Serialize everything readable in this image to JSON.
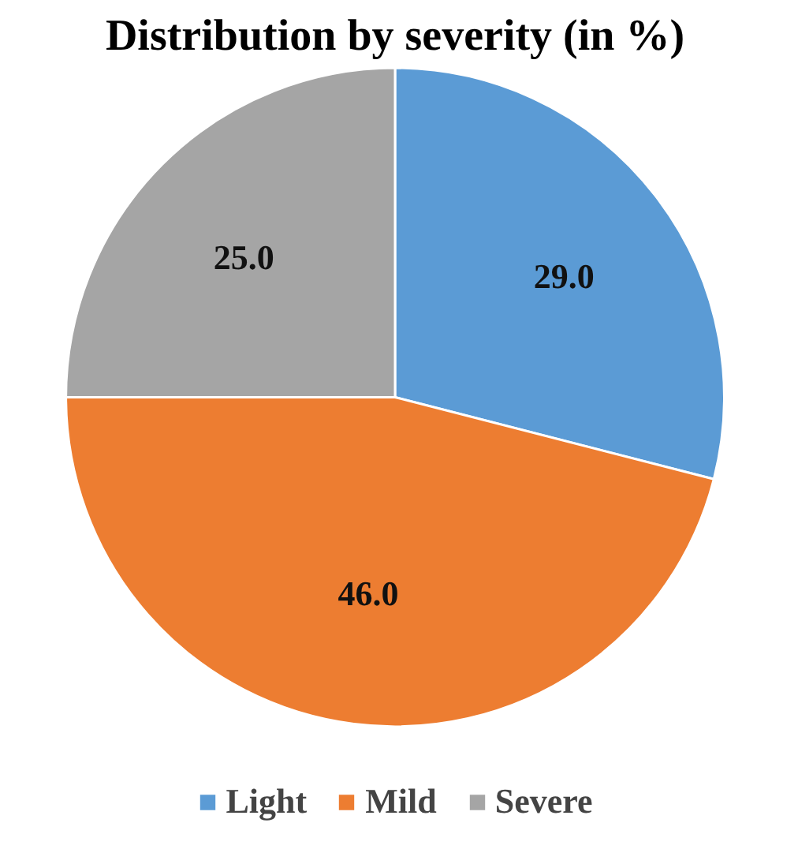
{
  "chart_data": {
    "type": "pie",
    "title": "Distribution by severity (in %)",
    "categories": [
      "Light",
      "Mild",
      "Severe"
    ],
    "values": [
      29.0,
      46.0,
      25.0
    ],
    "value_labels": [
      "29.0",
      "46.0",
      "25.0"
    ],
    "colors": [
      "#5b9bd5",
      "#ed7d31",
      "#a5a5a5"
    ],
    "legend": "bottom"
  }
}
